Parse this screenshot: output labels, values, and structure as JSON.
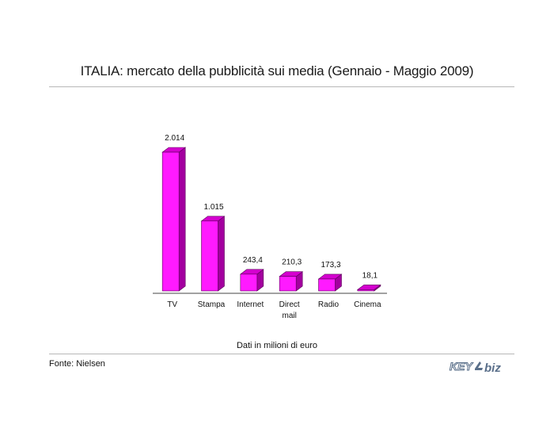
{
  "title": "ITALIA: mercato della pubblicità sui media (Gennaio - Maggio 2009)",
  "chart_data": {
    "type": "bar",
    "categories": [
      "TV",
      "Stampa",
      "Internet",
      "Direct mail",
      "Radio",
      "Cinema"
    ],
    "values": [
      2014,
      1015,
      243.4,
      210.3,
      173.3,
      18.1
    ],
    "value_labels": [
      "2.014",
      "1.015",
      "243,4",
      "210,3",
      "173,3",
      "18,1"
    ],
    "ylim": [
      0,
      2014
    ],
    "grid": false,
    "bar_color": "#ff1aff",
    "bar_side_color": "#a3009f",
    "bar_top_color": "#d400cf"
  },
  "note": "Dati in milioni di euro",
  "source": "Fonte: Nielsen",
  "logo": {
    "left": "KEY",
    "right": "biz",
    "color": "#5a6f8a"
  }
}
